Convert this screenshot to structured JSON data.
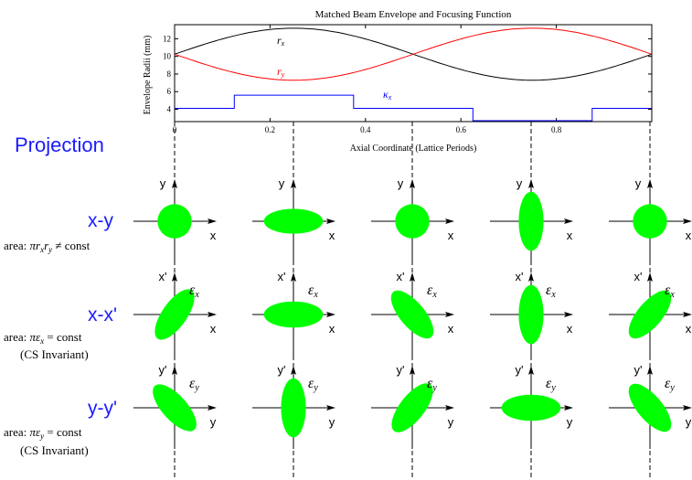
{
  "chart_data": {
    "type": "line",
    "title": "Matched Beam Envelope and Focusing Function",
    "xlabel": "Axial Coordinate (Lattice Periods)",
    "ylabel": "Envelope Radii (mm)",
    "xlim": [
      0,
      1
    ],
    "ylim": [
      2.6,
      13.6
    ],
    "xticks": [
      "0",
      "0.2",
      "0.4",
      "0.6",
      "0.8"
    ],
    "yticks": [
      "4",
      "6",
      "8",
      "10",
      "12"
    ],
    "series": [
      {
        "name": "r_x",
        "color": "#000000",
        "x": [
          0,
          0.125,
          0.25,
          0.375,
          0.5,
          0.625,
          0.75,
          0.875,
          1
        ],
        "y": [
          10.0,
          12.2,
          13.2,
          12.2,
          10.0,
          7.8,
          7.3,
          7.8,
          10.0
        ]
      },
      {
        "name": "r_y",
        "color": "#ff0000",
        "x": [
          0,
          0.125,
          0.25,
          0.375,
          0.5,
          0.625,
          0.75,
          0.875,
          1
        ],
        "y": [
          10.0,
          7.8,
          7.3,
          7.8,
          10.0,
          12.2,
          13.2,
          12.2,
          10.0
        ]
      },
      {
        "name": "κ_x",
        "color": "#0000ff",
        "x": [
          0,
          0.125,
          0.125,
          0.375,
          0.375,
          0.625,
          0.625,
          0.875,
          0.875,
          1
        ],
        "y": [
          4.1,
          4.1,
          5.6,
          5.6,
          4.1,
          4.1,
          2.7,
          2.7,
          4.1,
          4.1
        ]
      }
    ],
    "curve_labels": {
      "rx": "r",
      "rx_sub": "x",
      "ry": "r",
      "ry_sub": "y",
      "kx": "κ",
      "kx_sub": "x"
    }
  },
  "projection_label": "Projection",
  "rows": [
    {
      "label": "x-y",
      "note_prefix": "area: ",
      "note_math": "πr",
      "note_sub1": "x",
      "note_mid": "r",
      "note_sub2": "y",
      "note_suffix": " ≠ const",
      "note2": "",
      "haxis": "x",
      "vaxis": "y",
      "eps": "",
      "eps_sub": ""
    },
    {
      "label": "x-x'",
      "note_prefix": "area: ",
      "note_math": "πε",
      "note_sub1": "x",
      "note_mid": "",
      "note_sub2": "",
      "note_suffix": " = const",
      "note2": "(CS Invariant)",
      "haxis": "x",
      "vaxis": "x'",
      "eps": "ε",
      "eps_sub": "x"
    },
    {
      "label": "y-y'",
      "note_prefix": "area: ",
      "note_math": "πε",
      "note_sub1": "y",
      "note_mid": "",
      "note_sub2": "",
      "note_suffix": " = const",
      "note2": "(CS Invariant)",
      "haxis": "y",
      "vaxis": "y'",
      "eps": "ε",
      "eps_sub": "y"
    }
  ],
  "ellipses": [
    [
      {
        "rx": 0.55,
        "ry": 0.55,
        "angle": 0
      },
      {
        "rx": 0.95,
        "ry": 0.4,
        "angle": 0
      },
      {
        "rx": 0.55,
        "ry": 0.55,
        "angle": 0
      },
      {
        "rx": 0.4,
        "ry": 0.95,
        "angle": 0
      },
      {
        "rx": 0.55,
        "ry": 0.55,
        "angle": 0
      }
    ],
    [
      {
        "rx": 0.95,
        "ry": 0.4,
        "angle": -55
      },
      {
        "rx": 0.95,
        "ry": 0.42,
        "angle": 0
      },
      {
        "rx": 0.95,
        "ry": 0.4,
        "angle": 50
      },
      {
        "rx": 0.4,
        "ry": 0.95,
        "angle": 0
      },
      {
        "rx": 0.95,
        "ry": 0.4,
        "angle": -50
      }
    ],
    [
      {
        "rx": 0.95,
        "ry": 0.4,
        "angle": 48
      },
      {
        "rx": 0.4,
        "ry": 0.95,
        "angle": 0
      },
      {
        "rx": 0.95,
        "ry": 0.4,
        "angle": -52
      },
      {
        "rx": 0.95,
        "ry": 0.42,
        "angle": 0
      },
      {
        "rx": 0.95,
        "ry": 0.4,
        "angle": 50
      }
    ]
  ],
  "colors": {
    "ellipse": "#00ff00",
    "proj": "#1a1aff",
    "rx": "#000000",
    "ry": "#ff0000",
    "kx": "#0000ff"
  }
}
